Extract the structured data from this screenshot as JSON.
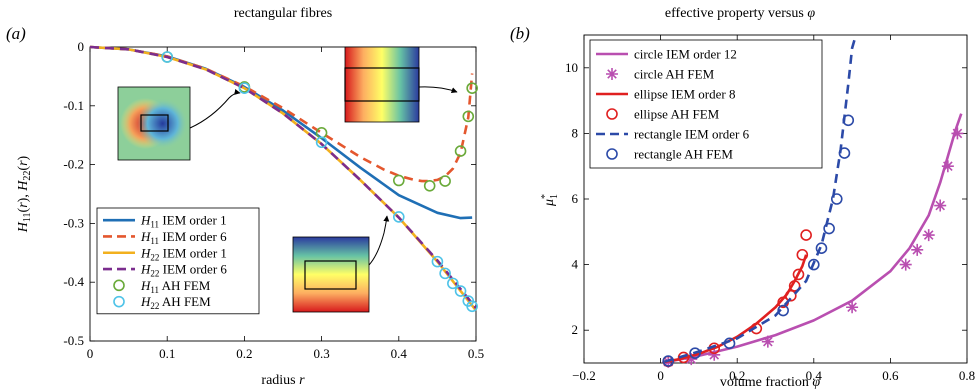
{
  "chart_data": [
    {
      "type": "line",
      "panel_label": "(a)",
      "title": "rectangular fibres",
      "xlabel": "radius r",
      "ylabel": "H11(r), H22(r)",
      "xlim": [
        0,
        0.5
      ],
      "ylim": [
        -0.5,
        0
      ],
      "xticks": [
        "0",
        "0.1",
        "0.2",
        "0.3",
        "0.4",
        "0.5"
      ],
      "yticks": [
        "0",
        "-0.1",
        "-0.2",
        "-0.3",
        "-0.4",
        "-0.5"
      ],
      "legend_position": "lower-left",
      "series": [
        {
          "name": "H11 IEM order 1",
          "legend_main": "H",
          "legend_sub": "11",
          "legend_rest": "IEM order 1",
          "style": "line",
          "color": "#1f6fb5",
          "x": [
            0,
            0.05,
            0.1,
            0.15,
            0.2,
            0.25,
            0.3,
            0.35,
            0.4,
            0.45,
            0.48,
            0.495
          ],
          "y": [
            0,
            -0.004,
            -0.016,
            -0.037,
            -0.068,
            -0.108,
            -0.155,
            -0.205,
            -0.252,
            -0.282,
            -0.291,
            -0.29
          ]
        },
        {
          "name": "H11 IEM order 6",
          "legend_main": "H",
          "legend_sub": "11",
          "legend_rest": "IEM order 6",
          "style": "dashed",
          "color": "#e4572e",
          "x": [
            0,
            0.05,
            0.1,
            0.15,
            0.2,
            0.25,
            0.3,
            0.35,
            0.38,
            0.4,
            0.42,
            0.43,
            0.44,
            0.45,
            0.46,
            0.47,
            0.48,
            0.49,
            0.495
          ],
          "y": [
            0,
            -0.004,
            -0.016,
            -0.037,
            -0.067,
            -0.104,
            -0.146,
            -0.187,
            -0.208,
            -0.219,
            -0.226,
            -0.228,
            -0.228,
            -0.226,
            -0.22,
            -0.207,
            -0.18,
            -0.12,
            -0.045
          ]
        },
        {
          "name": "H22 IEM order 1",
          "legend_main": "H",
          "legend_sub": "22",
          "legend_rest": "IEM order 1",
          "style": "line",
          "color": "#f2b01e",
          "x": [
            0,
            0.05,
            0.1,
            0.15,
            0.2,
            0.25,
            0.3,
            0.35,
            0.4,
            0.45,
            0.5
          ],
          "y": [
            0,
            -0.004,
            -0.017,
            -0.038,
            -0.07,
            -0.113,
            -0.165,
            -0.226,
            -0.29,
            -0.365,
            -0.448
          ]
        },
        {
          "name": "H22 IEM order 6",
          "legend_main": "H",
          "legend_sub": "22",
          "legend_rest": "IEM order 6",
          "style": "dashed",
          "color": "#7b2d8e",
          "x": [
            0,
            0.05,
            0.1,
            0.15,
            0.2,
            0.25,
            0.3,
            0.35,
            0.4,
            0.45,
            0.5
          ],
          "y": [
            0,
            -0.004,
            -0.017,
            -0.038,
            -0.07,
            -0.113,
            -0.165,
            -0.226,
            -0.29,
            -0.363,
            -0.444
          ]
        },
        {
          "name": "H11 AH FEM",
          "legend_main": "H",
          "legend_sub": "11",
          "legend_rest": "AH FEM",
          "style": "circle",
          "color": "#6aaa3a",
          "x": [
            0.1,
            0.2,
            0.3,
            0.4,
            0.44,
            0.46,
            0.48,
            0.49,
            0.495
          ],
          "y": [
            -0.017,
            -0.068,
            -0.146,
            -0.227,
            -0.236,
            -0.228,
            -0.177,
            -0.118,
            -0.07
          ]
        },
        {
          "name": "H22 AH FEM",
          "legend_main": "H",
          "legend_sub": "22",
          "legend_rest": "AH FEM",
          "style": "circle",
          "color": "#4fc3e8",
          "x": [
            0.1,
            0.2,
            0.3,
            0.4,
            0.45,
            0.46,
            0.47,
            0.48,
            0.49,
            0.495
          ],
          "y": [
            -0.017,
            -0.07,
            -0.162,
            -0.289,
            -0.365,
            -0.385,
            -0.402,
            -0.415,
            -0.432,
            -0.441
          ]
        }
      ]
    },
    {
      "type": "line",
      "panel_label": "(b)",
      "title": "effective property versus φ",
      "xlabel": "volume fraction φ",
      "ylabel": "μ*1",
      "xlim": [
        -0.2,
        0.8
      ],
      "ylim": [
        1,
        11
      ],
      "xticks": [
        "−0.2",
        "0",
        "0.2",
        "0.4",
        "0.6",
        "0.8"
      ],
      "yticks": [
        "2",
        "4",
        "6",
        "8",
        "10"
      ],
      "legend_position": "top-left",
      "series": [
        {
          "name": "circle IEM order 12",
          "style": "line",
          "color": "#b94fb0",
          "x": [
            0.01,
            0.1,
            0.2,
            0.3,
            0.4,
            0.5,
            0.6,
            0.65,
            0.7,
            0.73,
            0.75,
            0.77,
            0.785
          ],
          "y": [
            1.02,
            1.22,
            1.5,
            1.85,
            2.3,
            2.9,
            3.8,
            4.5,
            5.5,
            6.5,
            7.3,
            8.1,
            8.6
          ]
        },
        {
          "name": "circle AH FEM",
          "style": "star",
          "color": "#b94fb0",
          "x": [
            0.02,
            0.08,
            0.14,
            0.28,
            0.5,
            0.64,
            0.67,
            0.7,
            0.73,
            0.75,
            0.775
          ],
          "y": [
            1.04,
            1.12,
            1.25,
            1.65,
            2.7,
            4.0,
            4.45,
            4.9,
            5.8,
            7.0,
            8.0
          ]
        },
        {
          "name": "ellipse IEM order 8",
          "style": "line",
          "color": "#e02020",
          "x": [
            0.01,
            0.05,
            0.1,
            0.15,
            0.2,
            0.25,
            0.3,
            0.33,
            0.35,
            0.37,
            0.38
          ],
          "y": [
            1.03,
            1.12,
            1.28,
            1.5,
            1.8,
            2.2,
            2.7,
            3.1,
            3.5,
            3.95,
            4.3
          ]
        },
        {
          "name": "ellipse AH FEM",
          "style": "circle",
          "color": "#e02020",
          "x": [
            0.02,
            0.06,
            0.14,
            0.25,
            0.32,
            0.34,
            0.35,
            0.36,
            0.37,
            0.38
          ],
          "y": [
            1.05,
            1.17,
            1.45,
            2.05,
            2.85,
            3.05,
            3.35,
            3.7,
            4.3,
            4.9
          ]
        },
        {
          "name": "rectangle IEM order 6",
          "style": "dashed",
          "color": "#2c4aa8",
          "x": [
            0.01,
            0.1,
            0.2,
            0.3,
            0.38,
            0.42,
            0.45,
            0.47,
            0.48,
            0.49,
            0.5,
            0.51
          ],
          "y": [
            1.04,
            1.35,
            1.75,
            2.45,
            3.5,
            4.6,
            6.0,
            7.5,
            8.5,
            9.5,
            10.6,
            11.0
          ]
        },
        {
          "name": "rectangle AH FEM",
          "style": "circle",
          "color": "#2c4aa8",
          "x": [
            0.02,
            0.09,
            0.18,
            0.32,
            0.4,
            0.42,
            0.44,
            0.46,
            0.48,
            0.49
          ],
          "y": [
            1.06,
            1.3,
            1.6,
            2.6,
            4.0,
            4.5,
            5.1,
            6.0,
            7.4,
            8.4
          ]
        }
      ]
    }
  ]
}
